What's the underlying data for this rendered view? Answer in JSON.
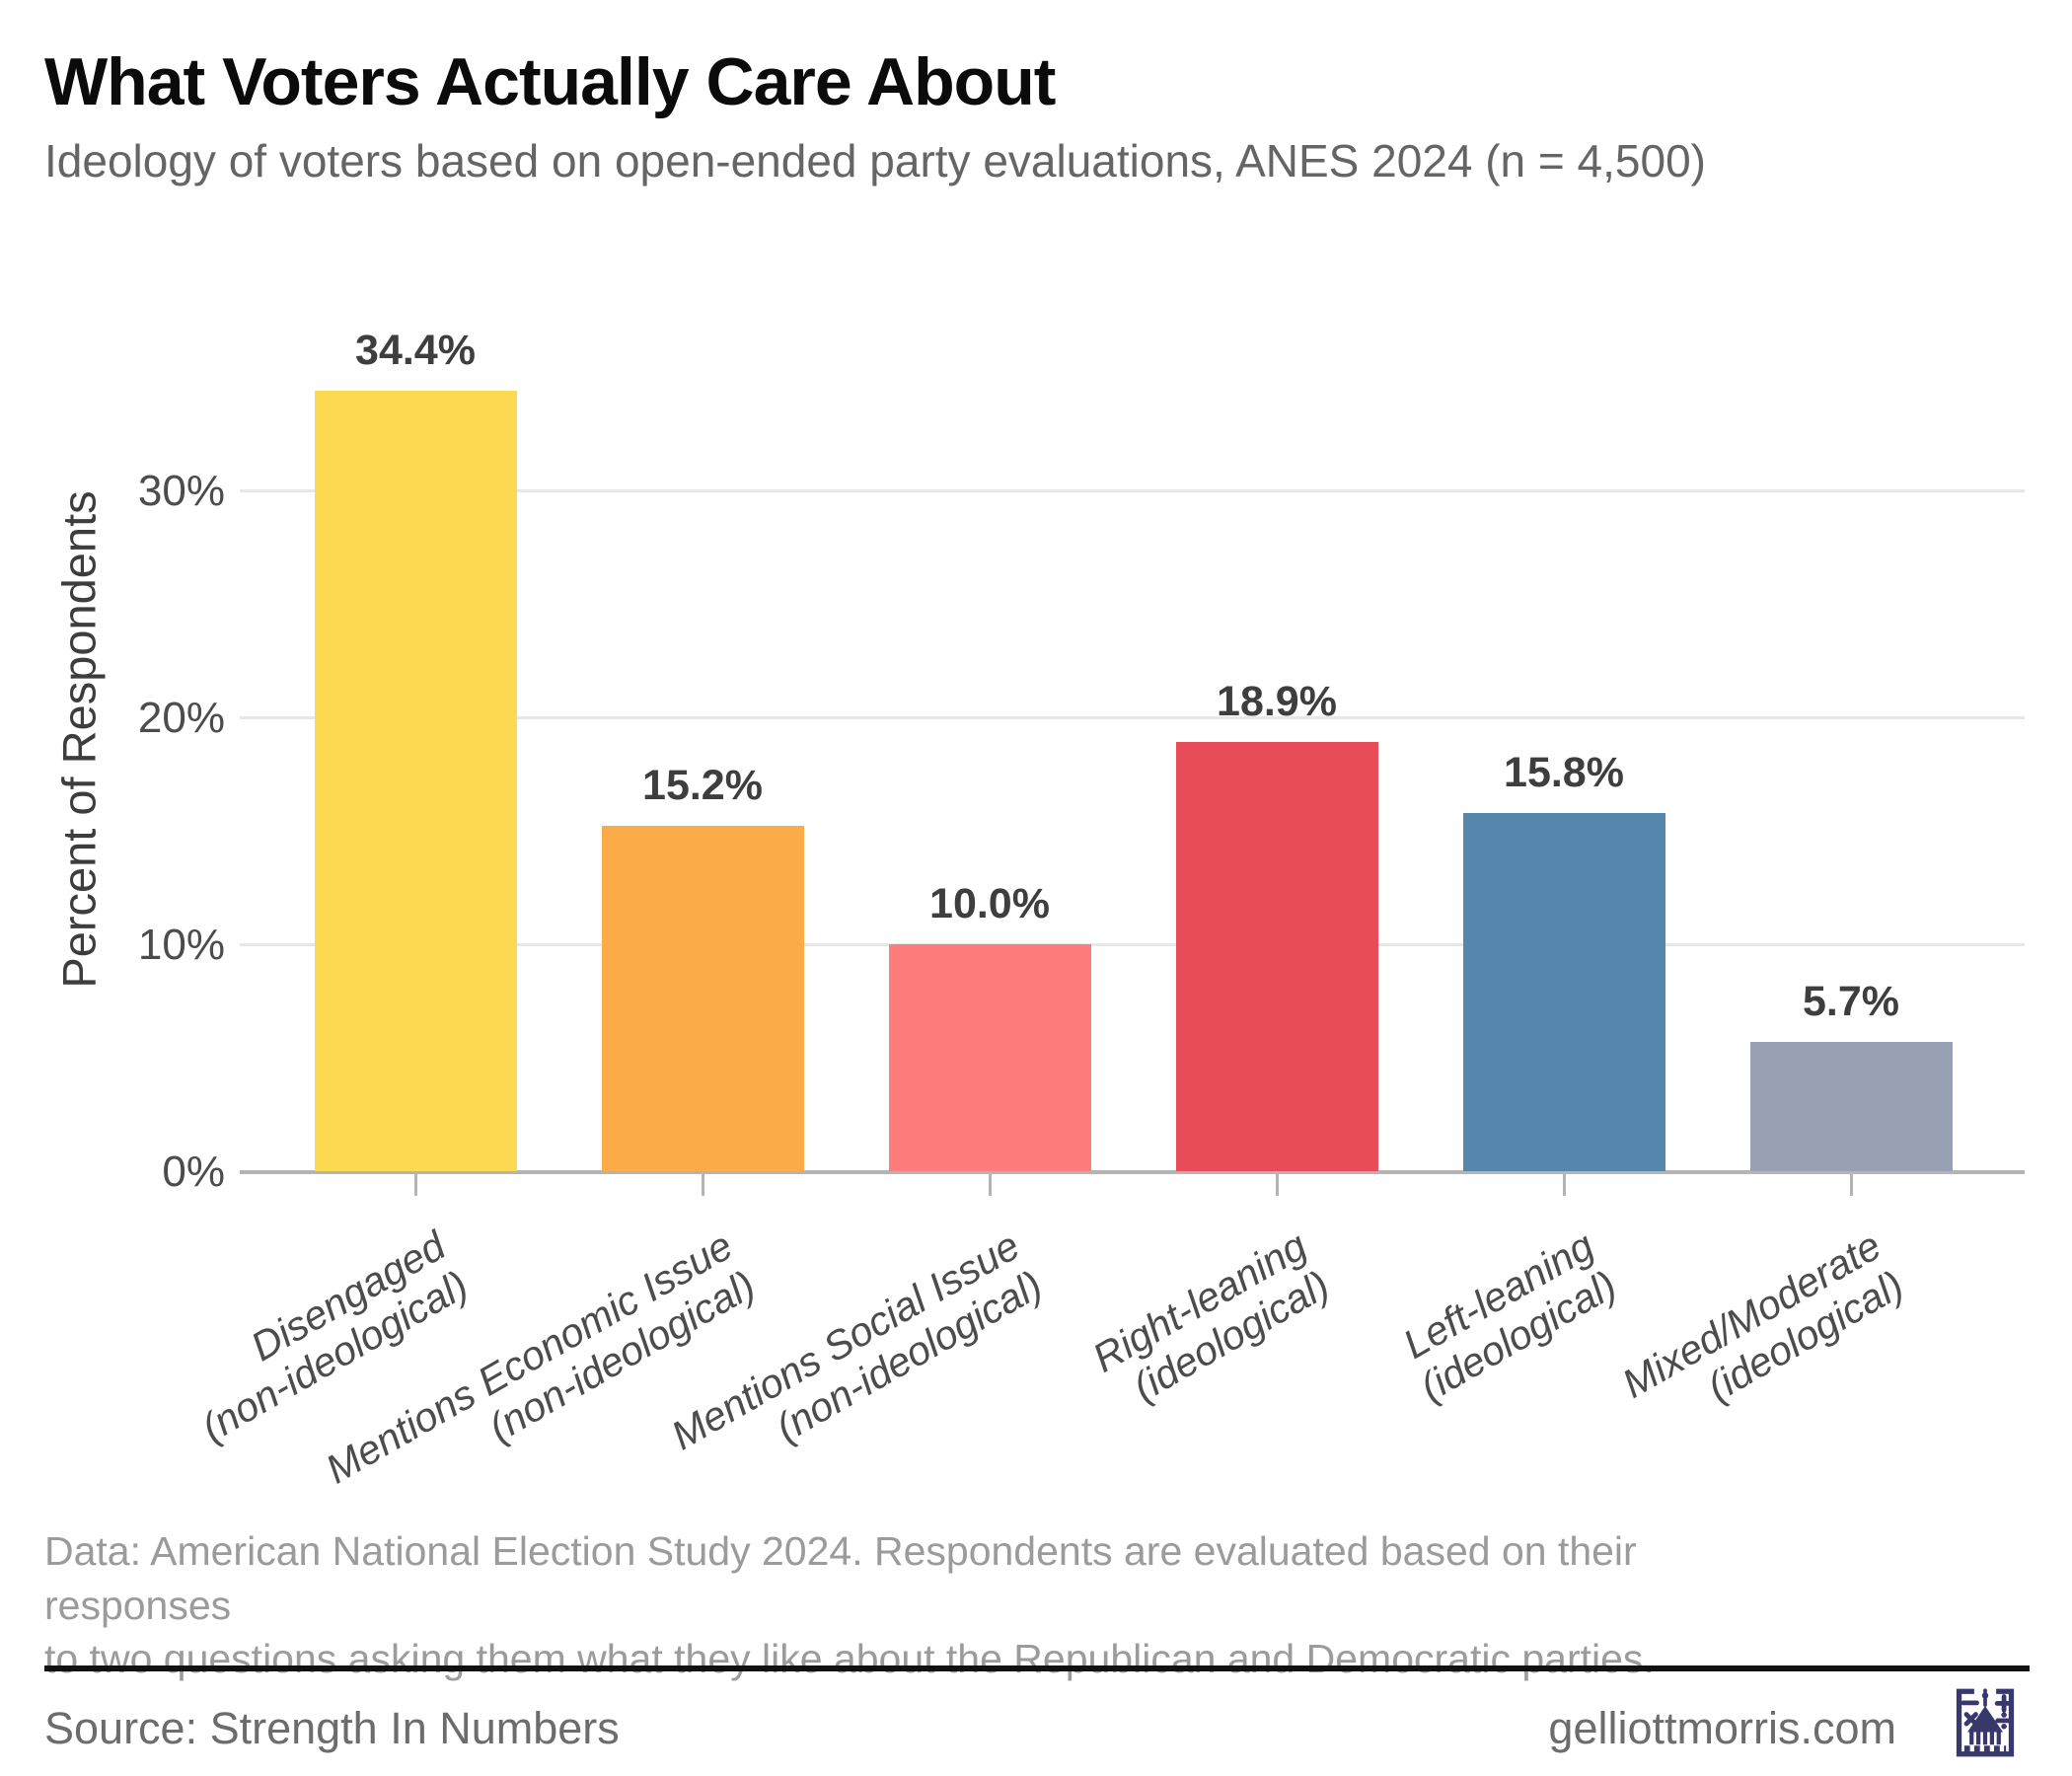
{
  "header": {
    "title": "What Voters Actually Care About",
    "subtitle": "Ideology of voters based on open-ended party evaluations, ANES 2024 (n = 4,500)"
  },
  "chart_data": {
    "type": "bar",
    "title": "What Voters Actually Care About",
    "subtitle": "Ideology of voters based on open-ended party evaluations, ANES 2024 (n = 4,500)",
    "xlabel": "",
    "ylabel": "Percent of Respondents",
    "categories": [
      "Disengaged\n(non-ideological)",
      "Mentions Economic Issue\n(non-ideological)",
      "Mentions Social Issue\n(non-ideological)",
      "Right-leaning\n(ideological)",
      "Left-leaning\n(ideological)",
      "Mixed/Moderate\n(ideological)"
    ],
    "values": [
      34.4,
      15.2,
      10.0,
      18.9,
      15.8,
      5.7
    ],
    "value_labels": [
      "34.4%",
      "15.2%",
      "10.0%",
      "18.9%",
      "15.8%",
      "5.7%"
    ],
    "bar_colors": [
      "#fdd951",
      "#fbac49",
      "#fd7c7c",
      "#e84c59",
      "#5487ab",
      "#97a1b3"
    ],
    "yticks": [
      {
        "value": 0,
        "label": "0%"
      },
      {
        "value": 10,
        "label": "10%"
      },
      {
        "value": 20,
        "label": "20%"
      },
      {
        "value": 30,
        "label": "30%"
      }
    ],
    "ylim": [
      0,
      36
    ],
    "grid": "horizontal-only",
    "legend": "none"
  },
  "caption": {
    "text": "Data: American National Election Study 2024. Respondents are evaluated based on their responses\nto two questions asking them what they like about the Republican and Democratic parties."
  },
  "footer": {
    "source": "Source: Strength In Numbers",
    "site": "gelliottmorris.com",
    "logo_icon": "capitol-math-logo"
  },
  "colors": {
    "divider": "#111111",
    "logo_navy": "#38386d",
    "axis_line": "#b4b4b4",
    "gridline": "#e7e7e7"
  }
}
